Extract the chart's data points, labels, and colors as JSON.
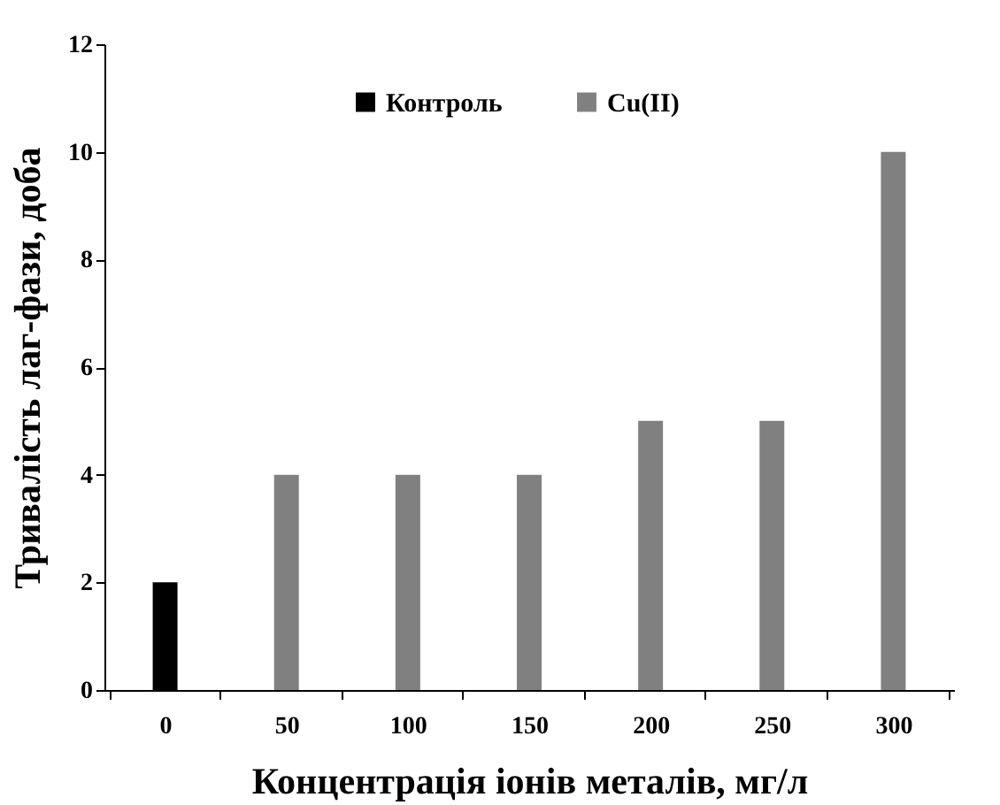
{
  "chart_data": {
    "type": "bar",
    "xlabel": "Концентрація іонів металів, мг/л",
    "ylabel": "Тривалість лаг-фази, доба",
    "categories": [
      "0",
      "50",
      "100",
      "150",
      "200",
      "250",
      "300"
    ],
    "series": [
      {
        "name": "Контроль",
        "color": "#000000",
        "values": [
          2,
          null,
          null,
          null,
          null,
          null,
          null
        ]
      },
      {
        "name": "Cu(II)",
        "color": "#808080",
        "values": [
          null,
          4,
          4,
          4,
          5,
          5,
          10
        ]
      }
    ],
    "ylim": [
      0,
      12
    ],
    "yticks": [
      0,
      2,
      4,
      6,
      8,
      10,
      12
    ],
    "grid": false,
    "legend": "top"
  }
}
